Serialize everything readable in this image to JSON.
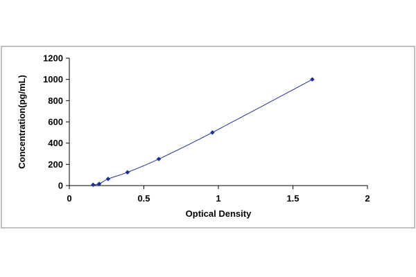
{
  "chart_data": {
    "type": "scatter",
    "title": "",
    "xlabel": "Optical Density",
    "ylabel": "Concentration(pg/mL)",
    "xlim": [
      0,
      2
    ],
    "ylim": [
      0,
      1200
    ],
    "x_ticks": [
      "0",
      "0.5",
      "1",
      "1.5",
      "2"
    ],
    "y_ticks": [
      "0",
      "200",
      "400",
      "600",
      "800",
      "1000",
      "1200"
    ],
    "grid": false,
    "legend": "none",
    "series": [
      {
        "points": [
          {
            "x": 0.16,
            "y": 7.8
          },
          {
            "x": 0.2,
            "y": 15.6
          },
          {
            "x": 0.26,
            "y": 62.5
          },
          {
            "x": 0.39,
            "y": 125
          },
          {
            "x": 0.6,
            "y": 250
          },
          {
            "x": 0.96,
            "y": 500
          },
          {
            "x": 1.63,
            "y": 1000
          }
        ],
        "marker": "diamond",
        "marker_color": "#1f2f8f",
        "line_color": "#1f2f8f",
        "fit": "smooth curve"
      }
    ]
  }
}
